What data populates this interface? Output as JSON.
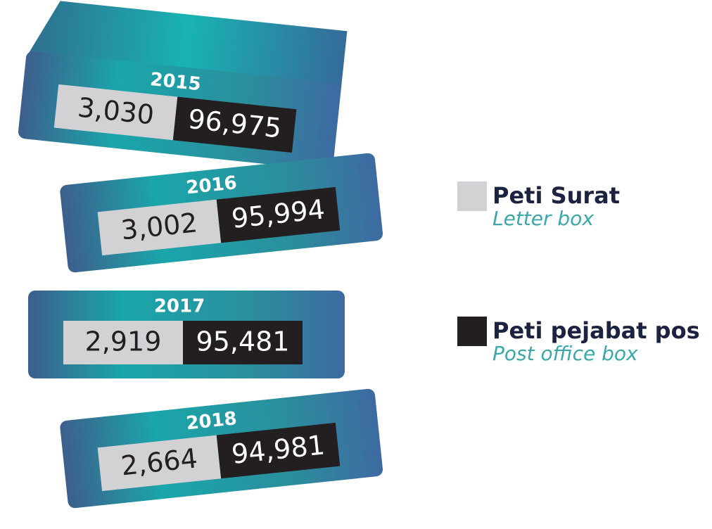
{
  "chart_data": {
    "type": "block",
    "categories": [
      "2015",
      "2016",
      "2017",
      "2018"
    ],
    "series": [
      {
        "name": "Peti Surat",
        "subname": "Letter box",
        "color": "#d2d2d4",
        "values": [
          3030,
          3002,
          2919,
          2664
        ],
        "value_labels": [
          "3,030",
          "3,002",
          "2,919",
          "2,664"
        ]
      },
      {
        "name": "Peti pejabat pos",
        "subname": "Post office box",
        "color": "#231f20",
        "values": [
          96975,
          95994,
          95481,
          94981
        ],
        "value_labels": [
          "96,975",
          "95,994",
          "95,481",
          "94,981"
        ]
      }
    ]
  }
}
